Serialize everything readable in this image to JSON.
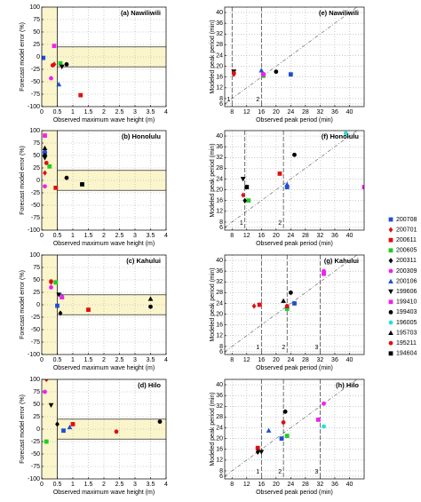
{
  "legend": {
    "series": [
      {
        "name": "200708",
        "color": "#1f4fd6",
        "marker": "square"
      },
      {
        "name": "200701",
        "color": "#e01010",
        "marker": "diamond"
      },
      {
        "name": "200611",
        "color": "#e01010",
        "marker": "square"
      },
      {
        "name": "200605",
        "color": "#22cc22",
        "marker": "square"
      },
      {
        "name": "200311",
        "color": "#000000",
        "marker": "diamond"
      },
      {
        "name": "200309",
        "color": "#ee22ee",
        "marker": "circle"
      },
      {
        "name": "200106",
        "color": "#1f4fd6",
        "marker": "triangle"
      },
      {
        "name": "199606",
        "color": "#000000",
        "marker": "down-triangle"
      },
      {
        "name": "199410",
        "color": "#ee22ee",
        "marker": "square"
      },
      {
        "name": "199403",
        "color": "#000000",
        "marker": "circle"
      },
      {
        "name": "196005",
        "color": "#22e0e0",
        "marker": "circle"
      },
      {
        "name": "195703",
        "color": "#000000",
        "marker": "triangle"
      },
      {
        "name": "195211",
        "color": "#e01010",
        "marker": "circle"
      },
      {
        "name": "194604",
        "color": "#000000",
        "marker": "square"
      }
    ]
  },
  "chart_data": [
    {
      "type": "error",
      "title": "(a)  Nawiliwili",
      "xlabel": "Observed maximum wave height (m)",
      "ylabel": "Forecast model error (%)",
      "xlim": [
        0,
        4
      ],
      "ylim": [
        -100,
        100
      ],
      "xticks": [
        0,
        0.5,
        1,
        1.5,
        2,
        2.5,
        3,
        3.5,
        4
      ],
      "yticks": [
        -100,
        -75,
        -50,
        -25,
        0,
        25,
        50,
        75,
        100
      ],
      "grid": true,
      "threshold_x": 0.5,
      "threshold_y": 20,
      "x": [
        0.05,
        0.4,
        1.25,
        0.6,
        null,
        0.3,
        0.55,
        0.65,
        0.4,
        0.8,
        null,
        null,
        0.35,
        null
      ],
      "y": [
        -2,
        -15,
        -77,
        -13,
        null,
        -43,
        -55,
        -20,
        22,
        -15,
        null,
        null,
        -17,
        null
      ]
    },
    {
      "type": "error",
      "title": "(b)  Honolulu",
      "xlabel": "Observed maximum wave height (m)",
      "ylabel": "Forecast model error (%)",
      "xlim": [
        0,
        4
      ],
      "ylim": [
        -100,
        100
      ],
      "xticks": [
        0,
        0.5,
        1,
        1.5,
        2,
        2.5,
        3,
        3.5,
        4
      ],
      "yticks": [
        -100,
        -75,
        -50,
        -25,
        0,
        25,
        50,
        75,
        100
      ],
      "grid": true,
      "threshold_x": 0.5,
      "threshold_y": 20,
      "x": [
        0.1,
        0.1,
        0.45,
        0.25,
        0.1,
        0.1,
        0.1,
        0.1,
        0.1,
        0.8,
        null,
        0.1,
        0.15,
        1.3
      ],
      "y": [
        55,
        15,
        -15,
        28,
        50,
        -12,
        60,
        45,
        90,
        5,
        null,
        65,
        35,
        -8
      ]
    },
    {
      "type": "error",
      "title": "(c)  Kahului",
      "xlabel": "Observed maximum wave height (m)",
      "ylabel": "Forecast model error (%)",
      "xlim": [
        0,
        4
      ],
      "ylim": [
        -100,
        100
      ],
      "xticks": [
        0,
        0.5,
        1,
        1.5,
        2,
        2.5,
        3,
        3.5,
        4
      ],
      "yticks": [
        -100,
        -75,
        -50,
        -25,
        0,
        25,
        50,
        75,
        100
      ],
      "grid": true,
      "threshold_x": 0.5,
      "threshold_y": 20,
      "x": [
        0.5,
        0.3,
        1.5,
        0.45,
        0.6,
        0.3,
        0.65,
        0.55,
        0.65,
        3.5,
        null,
        3.5,
        0.3,
        null
      ],
      "y": [
        -2,
        45,
        -10,
        45,
        -17,
        35,
        18,
        20,
        15,
        -4,
        null,
        12,
        47,
        null
      ]
    },
    {
      "type": "error",
      "title": "(d)  Hilo",
      "xlabel": "Observed maximum wave height (m)",
      "ylabel": "Forecast model error (%)",
      "xlim": [
        0,
        4
      ],
      "ylim": [
        -100,
        100
      ],
      "xticks": [
        0,
        0.5,
        1,
        1.5,
        2,
        2.5,
        3,
        3.5,
        4
      ],
      "yticks": [
        -100,
        -75,
        -50,
        -25,
        0,
        25,
        50,
        75,
        100
      ],
      "grid": true,
      "threshold_x": 0.5,
      "threshold_y": 20,
      "x": [
        0.7,
        0.15,
        1,
        0.15,
        0.5,
        0.1,
        0.9,
        0.3,
        null,
        3.8,
        null,
        null,
        2.4,
        null
      ],
      "y": [
        -3,
        100,
        10,
        -25,
        10,
        75,
        4,
        48,
        null,
        15,
        null,
        null,
        -5,
        null
      ]
    },
    {
      "type": "period",
      "title": "(e)  Nawiliwili",
      "xlabel": "Observed peak period (min)",
      "ylabel": "Modeled peak period (min)",
      "xlim": [
        6,
        44
      ],
      "ylim": [
        5,
        42
      ],
      "xticks": [
        8,
        12,
        16,
        20,
        24,
        28,
        32,
        36,
        40
      ],
      "yticks": [
        6,
        8,
        12,
        16,
        20,
        24,
        28,
        32,
        36,
        40
      ],
      "grid": true,
      "period_lines": [
        {
          "value": 8,
          "label": "1"
        },
        {
          "value": 16,
          "label": "2"
        }
      ],
      "x": [
        24,
        8.5,
        16.5,
        16.5,
        null,
        null,
        16,
        8.5,
        16.5,
        20,
        null,
        null,
        8.5,
        null
      ],
      "y": [
        17,
        17,
        16.5,
        16.5,
        null,
        null,
        18.5,
        18,
        17,
        18,
        null,
        null,
        17.5,
        null
      ]
    },
    {
      "type": "period",
      "title": "(f)  Honolulu",
      "xlabel": "Observed peak period (min)",
      "ylabel": "Modeled peak period (min)",
      "xlim": [
        6,
        44
      ],
      "ylim": [
        5,
        42
      ],
      "xticks": [
        8,
        12,
        16,
        20,
        24,
        28,
        32,
        36,
        40
      ],
      "yticks": [
        6,
        8,
        12,
        16,
        20,
        24,
        28,
        32,
        36,
        40
      ],
      "grid": true,
      "period_lines": [
        {
          "value": 11.5,
          "label": "1"
        },
        {
          "value": 22,
          "label": "2"
        }
      ],
      "x": [
        23,
        11,
        21,
        12.5,
        11.5,
        null,
        23,
        11,
        44,
        25,
        39,
        null,
        null,
        12
      ],
      "y": [
        21,
        18,
        26,
        16,
        16,
        null,
        22,
        24,
        21,
        33,
        41,
        null,
        null,
        21
      ]
    },
    {
      "type": "period",
      "title": "(g)  Kahului",
      "xlabel": "Observed peak period (min)",
      "ylabel": "Modeled peak period (min)",
      "xlim": [
        6,
        44
      ],
      "ylim": [
        5,
        42
      ],
      "xticks": [
        8,
        12,
        16,
        20,
        24,
        28,
        32,
        36,
        40
      ],
      "yticks": [
        6,
        8,
        12,
        16,
        20,
        24,
        28,
        32,
        36,
        40
      ],
      "grid": true,
      "period_lines": [
        {
          "value": 16,
          "label": "1"
        },
        {
          "value": 23,
          "label": "2"
        },
        {
          "value": 32,
          "label": "3"
        }
      ],
      "x": [
        25,
        14,
        15.5,
        23,
        null,
        33,
        23,
        null,
        33,
        24,
        null,
        22,
        23,
        null
      ],
      "y": [
        24,
        23,
        23.5,
        22,
        null,
        36,
        23,
        null,
        35,
        28,
        null,
        25,
        23,
        null
      ]
    },
    {
      "type": "period",
      "title": "(h)  Hilo",
      "xlabel": "Observed peak period (min)",
      "ylabel": "Modeled peak period (min)",
      "xlim": [
        6,
        44
      ],
      "ylim": [
        5,
        42
      ],
      "xticks": [
        8,
        12,
        16,
        20,
        24,
        28,
        32,
        36,
        40
      ],
      "yticks": [
        6,
        8,
        12,
        16,
        20,
        24,
        28,
        32,
        36,
        40
      ],
      "grid": true,
      "period_lines": [
        {
          "value": 16,
          "label": "1"
        },
        {
          "value": 22,
          "label": "2"
        },
        {
          "value": 32,
          "label": "3"
        }
      ],
      "x": [
        21.5,
        15,
        15,
        23,
        15,
        33,
        18,
        16,
        31.5,
        22.5,
        33,
        null,
        22,
        null
      ],
      "y": [
        20,
        16,
        16.5,
        21,
        15,
        33,
        23,
        15,
        27,
        30,
        24.5,
        null,
        26,
        null
      ]
    }
  ]
}
